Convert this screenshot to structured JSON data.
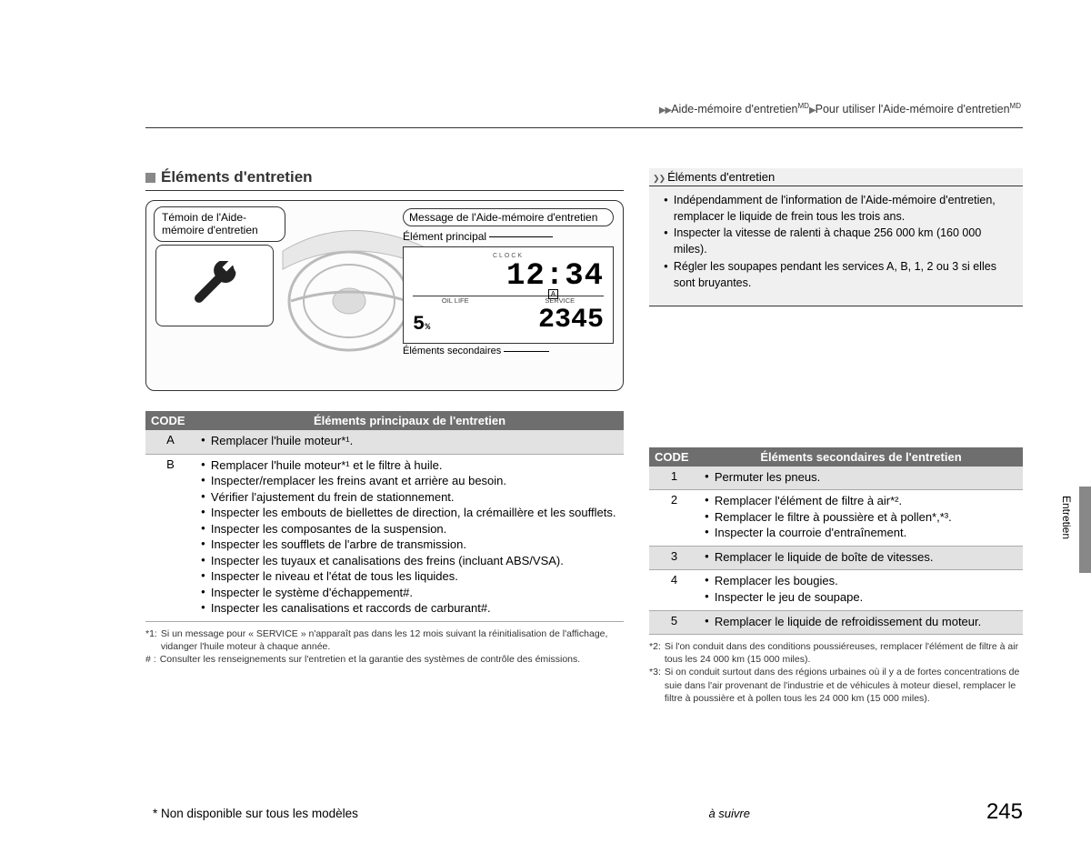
{
  "breadcrumb": {
    "part1": "Aide-mémoire d'entretien",
    "sup": "MD",
    "part2": "Pour utiliser l'Aide-mémoire d'entretien"
  },
  "section_title": "Éléments d'entretien",
  "diagram": {
    "callout_witness": "Témoin de l'Aide-mémoire d'entretien",
    "callout_message": "Message de l'Aide-mémoire d'entretien",
    "label_main": "Élément principal",
    "label_secondary": "Éléments secondaires",
    "clock_label": "CLOCK",
    "clock_value": "12:34",
    "oil_label": "OIL LIFE",
    "service_label": "SERVICE",
    "service_badge": "A",
    "oil_value": "5",
    "oil_pct": "%",
    "service_value": "2345"
  },
  "table_main": {
    "header_code": "CODE",
    "header_items": "Éléments principaux de l'entretien",
    "rows": [
      {
        "code": "A",
        "items": [
          "Remplacer l'huile moteur*¹."
        ]
      },
      {
        "code": "B",
        "items": [
          "Remplacer l'huile moteur*¹ et le filtre à huile.",
          "Inspecter/remplacer les freins avant et arrière au besoin.",
          "Vérifier l'ajustement du frein de stationnement.",
          "Inspecter les embouts de biellettes de direction, la crémaillère et les soufflets.",
          "Inspecter les composantes de la suspension.",
          "Inspecter les soufflets de l'arbre de transmission.",
          "Inspecter les tuyaux et canalisations des freins (incluant ABS/VSA).",
          "Inspecter le niveau et l'état de tous les liquides.",
          "Inspecter le système d'échappement#.",
          "Inspecter les canalisations et raccords de carburant#."
        ]
      }
    ]
  },
  "footnotes_left": [
    {
      "k": "*1:",
      "v": "Si un message pour « SERVICE » n'apparaît pas dans les 12 mois suivant la réinitialisation de l'affichage, vidanger l'huile moteur à chaque année."
    },
    {
      "k": "# :",
      "v": "Consulter les renseignements sur l'entretien et la garantie des systèmes de contrôle des émissions."
    }
  ],
  "info_box": {
    "title": "Éléments d'entretien",
    "items": [
      "Indépendamment de l'information de l'Aide-mémoire d'entretien, remplacer le liquide de frein tous les trois ans.",
      "Inspecter la vitesse de ralenti à chaque 256 000 km (160 000 miles).",
      "Régler les soupapes pendant les services A, B, 1, 2 ou 3 si elles sont bruyantes."
    ]
  },
  "table_sec": {
    "header_code": "CODE",
    "header_items": "Éléments secondaires de l'entretien",
    "rows": [
      {
        "code": "1",
        "items": [
          "Permuter les pneus."
        ]
      },
      {
        "code": "2",
        "items": [
          "Remplacer l'élément de filtre à air*².",
          "Remplacer le filtre à poussière et à pollen*,*³.",
          "Inspecter la courroie d'entraînement."
        ]
      },
      {
        "code": "3",
        "items": [
          "Remplacer le liquide de boîte de vitesses."
        ]
      },
      {
        "code": "4",
        "items": [
          "Remplacer les bougies.",
          "Inspecter le jeu de soupape."
        ]
      },
      {
        "code": "5",
        "items": [
          "Remplacer le liquide de refroidissement du moteur."
        ]
      }
    ]
  },
  "footnotes_right": [
    {
      "k": "*2:",
      "v": "Si l'on conduit dans des conditions poussiéreuses, remplacer l'élément de filtre à air tous les 24 000 km (15 000 miles)."
    },
    {
      "k": "*3:",
      "v": "Si on conduit surtout dans des régions urbaines où il y a de fortes concentrations de suie dans l'air provenant de l'industrie et de véhicules à moteur diesel, remplacer le filtre à poussière et à pollen tous les 24 000 km (15 000 miles)."
    }
  ],
  "non_dispo": "* Non disponible sur tous les modèles",
  "continue": "à suivre",
  "side_tab": "Entretien",
  "page_number": "245"
}
